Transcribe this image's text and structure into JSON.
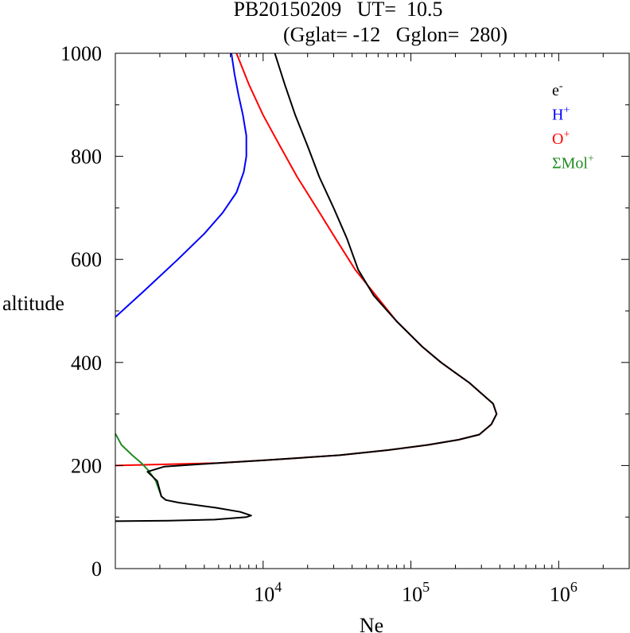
{
  "chart_data": {
    "type": "line",
    "title_line1": "PB20150209   UT=  10.5",
    "title_line2": "(Gglat= -12   Gglon=  280)",
    "xlabel": "Ne",
    "ylabel": "altitude",
    "x_scale": "log",
    "xlim": [
      1000,
      3000000
    ],
    "ylim": [
      0,
      1000
    ],
    "y_ticks": [
      0,
      200,
      400,
      600,
      800,
      1000
    ],
    "y_tick_labels": [
      "0",
      "200",
      "400",
      "600",
      "800",
      "1000"
    ],
    "x_ticks": [
      10000,
      100000,
      1000000
    ],
    "x_tick_labels": [
      {
        "base": "10",
        "exp": "4"
      },
      {
        "base": "10",
        "exp": "5"
      },
      {
        "base": "10",
        "exp": "6"
      }
    ],
    "grid": false,
    "legend_position": "top-right",
    "legend": [
      {
        "base": "e",
        "sup": "-",
        "color": "#000000"
      },
      {
        "base": "H",
        "sup": "+",
        "color": "#0000ff"
      },
      {
        "base": "O",
        "sup": "+",
        "color": "#ff0000"
      },
      {
        "base": "ΣMol",
        "sup": "+",
        "color": "#228b22"
      }
    ],
    "series": [
      {
        "color": "#0000ff",
        "points": [
          [
            1000,
            488
          ],
          [
            1580,
            540
          ],
          [
            2650,
            600
          ],
          [
            4000,
            650
          ],
          [
            5300,
            690
          ],
          [
            6600,
            730
          ],
          [
            7400,
            770
          ],
          [
            7700,
            800
          ],
          [
            7700,
            840
          ],
          [
            7300,
            880
          ],
          [
            6800,
            920
          ],
          [
            6400,
            960
          ],
          [
            6100,
            1000
          ]
        ]
      },
      {
        "color": "#ff0000",
        "points": [
          [
            1000,
            200
          ],
          [
            5000,
            205
          ],
          [
            10000,
            210
          ],
          [
            33000,
            220
          ],
          [
            70000,
            230
          ],
          [
            130000,
            240
          ],
          [
            210000,
            250
          ],
          [
            290000,
            260
          ],
          [
            350000,
            280
          ],
          [
            380000,
            300
          ],
          [
            360000,
            320
          ],
          [
            300000,
            340
          ],
          [
            250000,
            360
          ],
          [
            200000,
            380
          ],
          [
            160000,
            400
          ],
          [
            120000,
            430
          ],
          [
            80000,
            480
          ],
          [
            58000,
            530
          ],
          [
            42000,
            580
          ],
          [
            31000,
            640
          ],
          [
            23000,
            700
          ],
          [
            17000,
            760
          ],
          [
            13000,
            820
          ],
          [
            10000,
            880
          ],
          [
            8000,
            940
          ],
          [
            6600,
            1000
          ]
        ]
      },
      {
        "color": "#228b22",
        "points": [
          [
            1000,
            262
          ],
          [
            1100,
            240
          ],
          [
            1300,
            220
          ],
          [
            1500,
            205
          ],
          [
            1680,
            190
          ],
          [
            1880,
            170
          ],
          [
            2050,
            140
          ]
        ]
      },
      {
        "color": "#000000",
        "points": [
          [
            1000,
            92
          ],
          [
            2300,
            93
          ],
          [
            4700,
            95
          ],
          [
            7700,
            100
          ],
          [
            8300,
            103
          ],
          [
            7000,
            110
          ],
          [
            4800,
            118
          ],
          [
            2700,
            128
          ],
          [
            2200,
            133
          ],
          [
            2050,
            140
          ],
          [
            1920,
            170
          ],
          [
            1650,
            188
          ],
          [
            2150,
            198
          ],
          [
            5000,
            205
          ],
          [
            10000,
            210
          ],
          [
            33000,
            220
          ],
          [
            70000,
            230
          ],
          [
            130000,
            240
          ],
          [
            210000,
            250
          ],
          [
            290000,
            260
          ],
          [
            350000,
            280
          ],
          [
            380000,
            300
          ],
          [
            360000,
            320
          ],
          [
            300000,
            340
          ],
          [
            250000,
            360
          ],
          [
            200000,
            380
          ],
          [
            160000,
            400
          ],
          [
            120000,
            430
          ],
          [
            80000,
            480
          ],
          [
            56000,
            530
          ],
          [
            44000,
            580
          ],
          [
            37000,
            640
          ],
          [
            30000,
            700
          ],
          [
            24000,
            760
          ],
          [
            20000,
            820
          ],
          [
            16500,
            880
          ],
          [
            14000,
            940
          ],
          [
            12000,
            1000
          ]
        ]
      }
    ]
  }
}
